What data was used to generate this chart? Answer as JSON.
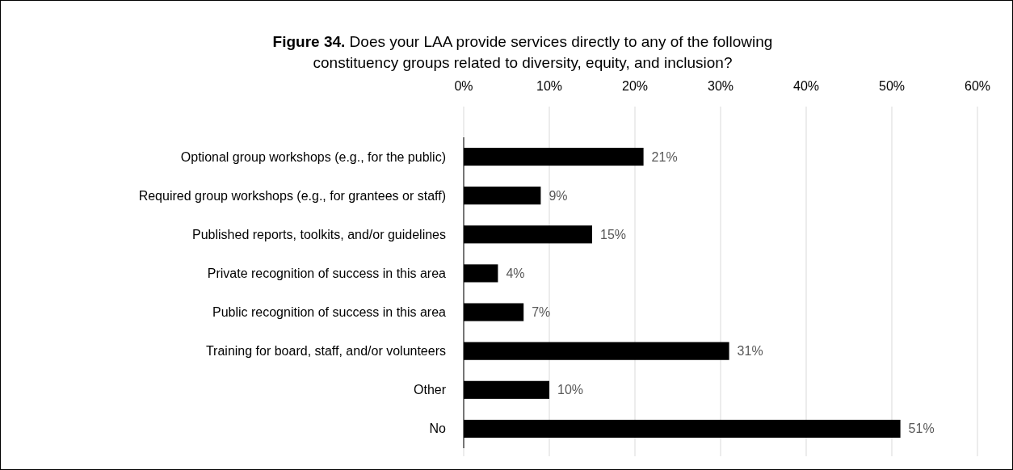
{
  "chart_data": {
    "type": "bar",
    "orientation": "horizontal",
    "title": "Figure 34. Does your LAA provide services directly to any of the following constituency groups related to diversity, equity, and inclusion?",
    "categories": [
      "Optional group workshops (e.g., for the public)",
      "Required group workshops (e.g., for grantees or staff)",
      "Published reports, toolkits, and/or guidelines",
      "Private recognition of success in this area",
      "Public recognition of success in this area",
      "Training for board, staff, and/or volunteers",
      "Other",
      "No"
    ],
    "values": [
      21,
      9,
      15,
      4,
      7,
      31,
      10,
      51
    ],
    "value_labels": [
      "21%",
      "9%",
      "15%",
      "4%",
      "7%",
      "31%",
      "10%",
      "51%"
    ],
    "color": "#000000",
    "xlim": [
      0,
      60
    ],
    "xticks": [
      {
        "value": 0,
        "label": "0%"
      },
      {
        "value": 10,
        "label": "10%"
      },
      {
        "value": 20,
        "label": "20%"
      },
      {
        "value": 30,
        "label": "30%"
      },
      {
        "value": 40,
        "label": "40%"
      },
      {
        "value": 50,
        "label": "50%"
      },
      {
        "value": 60,
        "label": "60%"
      }
    ],
    "grid": "x"
  }
}
